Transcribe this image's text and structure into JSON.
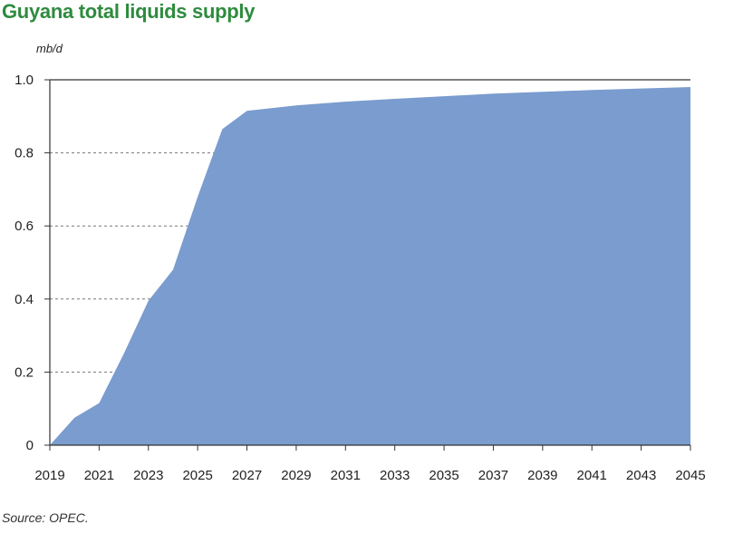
{
  "header": {
    "title": "Guyana total liquids supply",
    "unit": "mb/d"
  },
  "footer": {
    "source": "Source: OPEC."
  },
  "colors": {
    "title": "#2e8b3e",
    "area": "#7a9ccf",
    "grid": "#777777",
    "axis": "#333333"
  },
  "chart_data": {
    "type": "area",
    "title": "Guyana total liquids supply",
    "xlabel": "",
    "ylabel": "mb/d",
    "xlim": [
      2019,
      2045
    ],
    "ylim": [
      0,
      1.0
    ],
    "grid": "dashed horizontal gridlines",
    "yticks": [
      0,
      0.2,
      0.4,
      0.6,
      0.8,
      1.0
    ],
    "ytick_labels": [
      "0",
      "0.2",
      "0.4",
      "0.6",
      "0.8",
      "1.0"
    ],
    "xticks": [
      2019,
      2021,
      2023,
      2025,
      2027,
      2029,
      2031,
      2033,
      2035,
      2037,
      2039,
      2041,
      2043,
      2045
    ],
    "xtick_labels": [
      "2019",
      "2021",
      "2023",
      "2025",
      "2027",
      "2029",
      "2031",
      "2033",
      "2035",
      "2037",
      "2039",
      "2041",
      "2043",
      "2045"
    ],
    "series": [
      {
        "x": [
          2019,
          2020,
          2021,
          2022,
          2023,
          2024,
          2025,
          2026,
          2027,
          2029,
          2031,
          2033,
          2035,
          2037,
          2039,
          2041,
          2043,
          2045
        ],
        "values": [
          0.0,
          0.075,
          0.115,
          0.25,
          0.395,
          0.48,
          0.68,
          0.865,
          0.915,
          0.93,
          0.94,
          0.948,
          0.955,
          0.962,
          0.967,
          0.972,
          0.976,
          0.98
        ]
      }
    ]
  }
}
